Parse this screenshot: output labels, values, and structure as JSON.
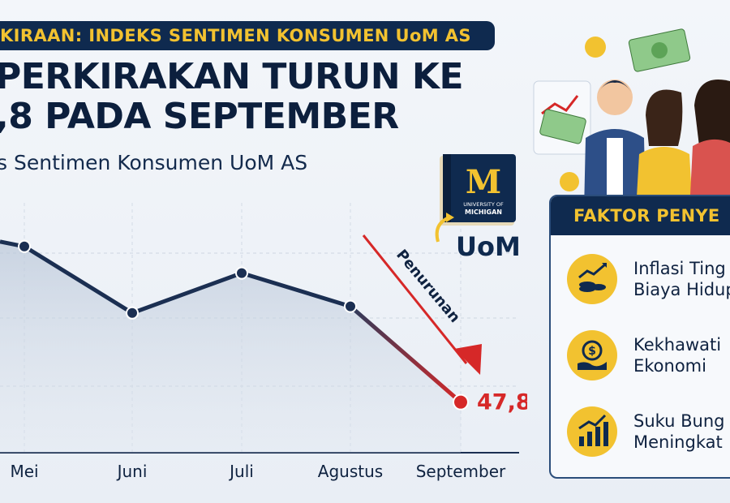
{
  "banner": "KIRAAN: INDEKS SENTIMEN KONSUMEN UoM AS",
  "headline": {
    "line1": "PERKIRAKAN TURUN KE",
    "line2": ",8 PADA SEPTEMBER"
  },
  "subtitle": "s Sentimen Konsumen UoM AS",
  "logo": {
    "book_letter": "M",
    "book_caption_1": "UNIVERSITY OF",
    "book_caption_2": "MICHIGAN",
    "text": "UoM"
  },
  "factors": {
    "title": "FAKTOR PENYE",
    "items": [
      {
        "line1": "Inflasi Ting",
        "line2": "Biaya Hidup",
        "icon": "inflation-coins-icon"
      },
      {
        "line1": "Kekhawati",
        "line2": "Ekonomi",
        "icon": "dollar-hand-icon"
      },
      {
        "line1": "Suku Bung",
        "line2": "Meningkat",
        "icon": "rising-bars-icon"
      }
    ]
  },
  "colors": {
    "navy": "#0f2a4f",
    "accent_yellow": "#f2c230",
    "drop_red": "#d62828",
    "line": "#1b2f52"
  },
  "chart_data": {
    "type": "line",
    "categories": [
      "Mei",
      "Juni",
      "Juli",
      "Agustus",
      "September"
    ],
    "values": [
      59.5,
      54.5,
      57.5,
      55.0,
      47.8
    ],
    "highlight": {
      "category": "September",
      "value": 47.8,
      "label": "47,8"
    },
    "annotation": "Penurunan",
    "ylim": [
      44,
      64
    ],
    "grid": true,
    "area_fill": true
  }
}
